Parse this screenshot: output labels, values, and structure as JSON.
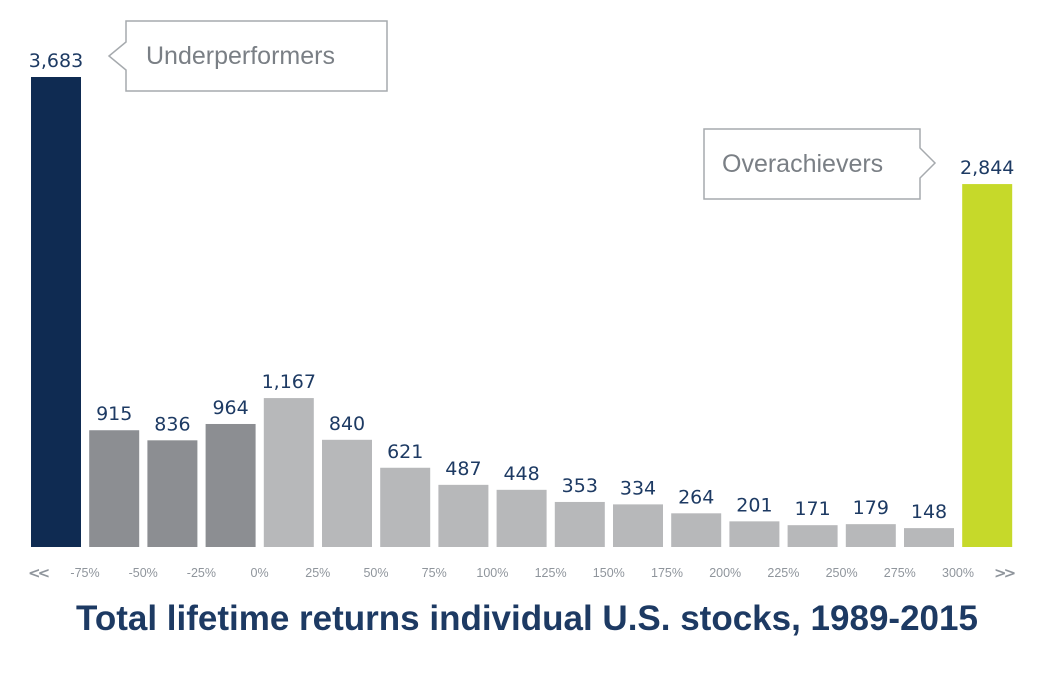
{
  "chart_data": {
    "type": "bar",
    "title": "Total lifetime returns individual U.S. stocks, 1989-2015",
    "xlabel": "",
    "ylabel": "",
    "ylim": [
      0,
      3683
    ],
    "grid": false,
    "tick_labels": [
      "-75%",
      "-50%",
      "-25%",
      "0%",
      "25%",
      "50%",
      "75%",
      "100%",
      "125%",
      "150%",
      "175%",
      "200%",
      "225%",
      "250%",
      "275%",
      "300%"
    ],
    "axis_arrows": {
      "left": "<<",
      "right": ">>"
    },
    "categories": [
      "< -75%",
      "-75% to -50%",
      "-50% to -25%",
      "-25% to 0%",
      "0% to 25%",
      "25% to 50%",
      "50% to 75%",
      "75% to 100%",
      "100% to 125%",
      "125% to 150%",
      "150% to 175%",
      "175% to 200%",
      "200% to 225%",
      "225% to 250%",
      "250% to 275%",
      "275% to 300%",
      "> 300%"
    ],
    "values": [
      3683,
      915,
      836,
      964,
      1167,
      840,
      621,
      487,
      448,
      353,
      334,
      264,
      201,
      171,
      179,
      148,
      2844
    ],
    "value_labels": [
      "3,683",
      "915",
      "836",
      "964",
      "1,167",
      "840",
      "621",
      "487",
      "448",
      "353",
      "334",
      "264",
      "201",
      "171",
      "179",
      "148",
      "2,844"
    ],
    "bar_colors": [
      "#0f2b52",
      "#8c8e92",
      "#8c8e92",
      "#8c8e92",
      "#b7b8ba",
      "#b7b8ba",
      "#b7b8ba",
      "#b7b8ba",
      "#b7b8ba",
      "#b7b8ba",
      "#b7b8ba",
      "#b7b8ba",
      "#b7b8ba",
      "#b7b8ba",
      "#b7b8ba",
      "#b7b8ba",
      "#c6d92a"
    ],
    "annotations": [
      {
        "text": "Underperformers",
        "bar_index": 0
      },
      {
        "text": "Overachievers",
        "bar_index": 16
      }
    ]
  }
}
